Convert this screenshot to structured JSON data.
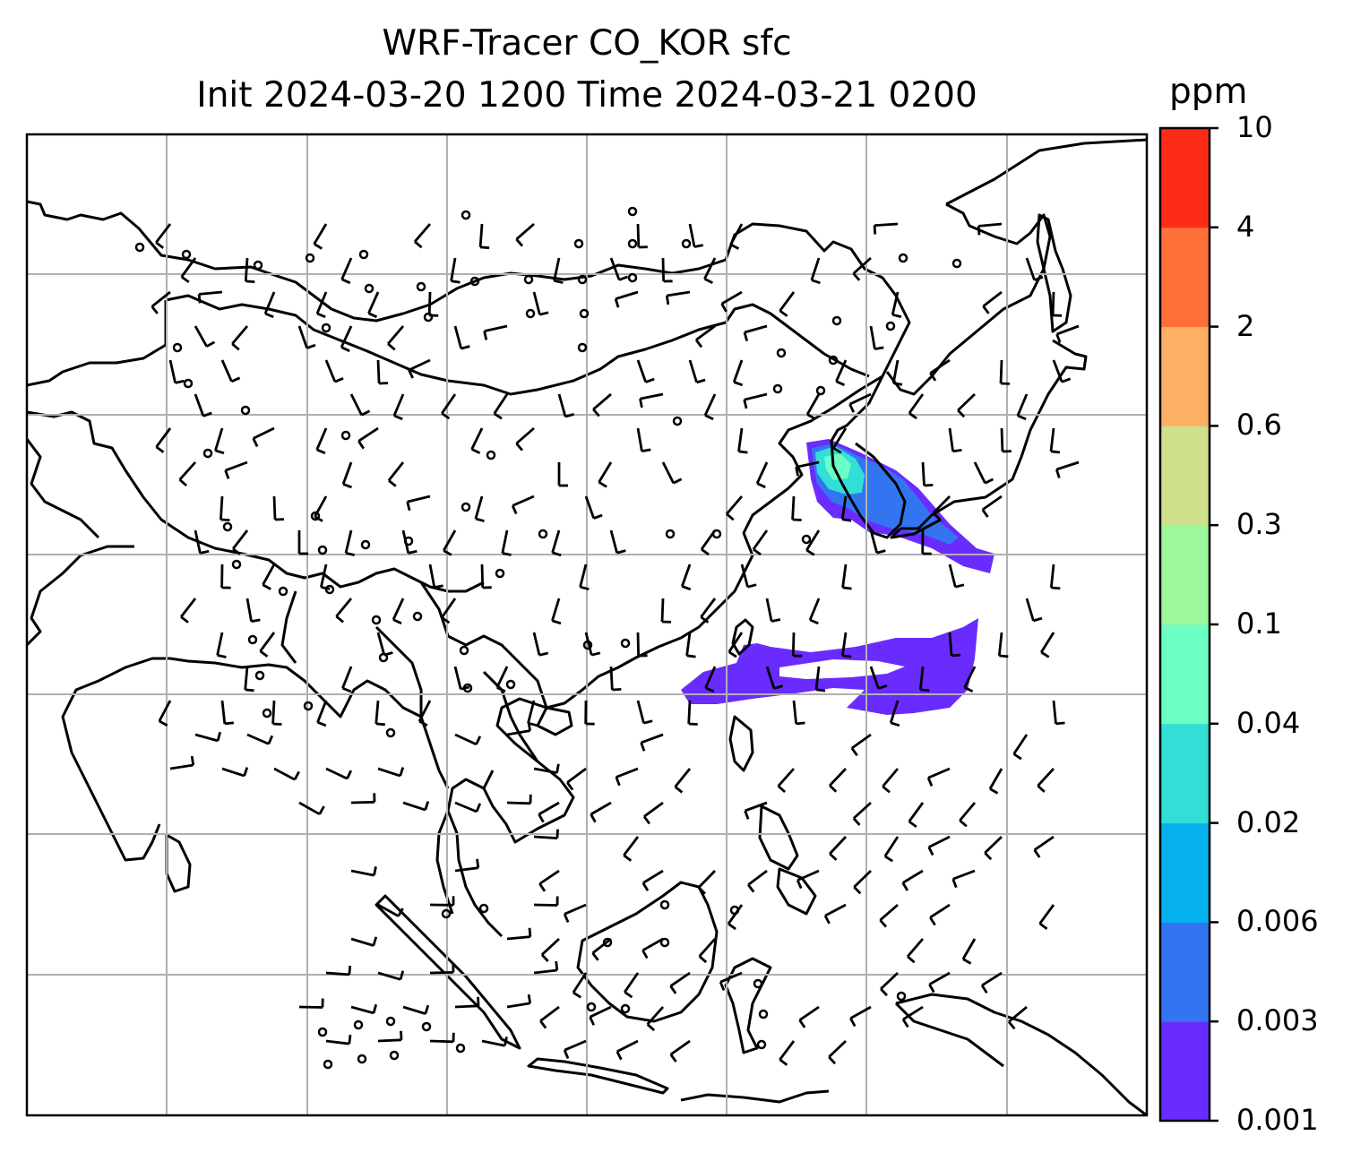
{
  "title": {
    "line1": "WRF-Tracer CO_KOR sfc",
    "line2": "Init 2024-03-20 1200 Time 2024-03-21 0200"
  },
  "colorbar": {
    "unit": "ppm",
    "levels": [
      "0.001",
      "0.003",
      "0.006",
      "0.02",
      "0.04",
      "0.1",
      "0.3",
      "0.6",
      "2",
      "4",
      "10"
    ],
    "colors": [
      "#6a2bff",
      "#3375f0",
      "#04b1ee",
      "#31dfd7",
      "#6bffc3",
      "#9df89c",
      "#cfe08b",
      "#fdb065",
      "#ff7139",
      "#ff2b19"
    ]
  },
  "map": {
    "gridlines": true,
    "layers": [
      "coastlines",
      "country-borders",
      "wind-barbs",
      "co-tracer-plume"
    ],
    "plume_colors_present": [
      "#6a2bff",
      "#3375f0",
      "#31dfd7",
      "#6bffc3"
    ]
  }
}
